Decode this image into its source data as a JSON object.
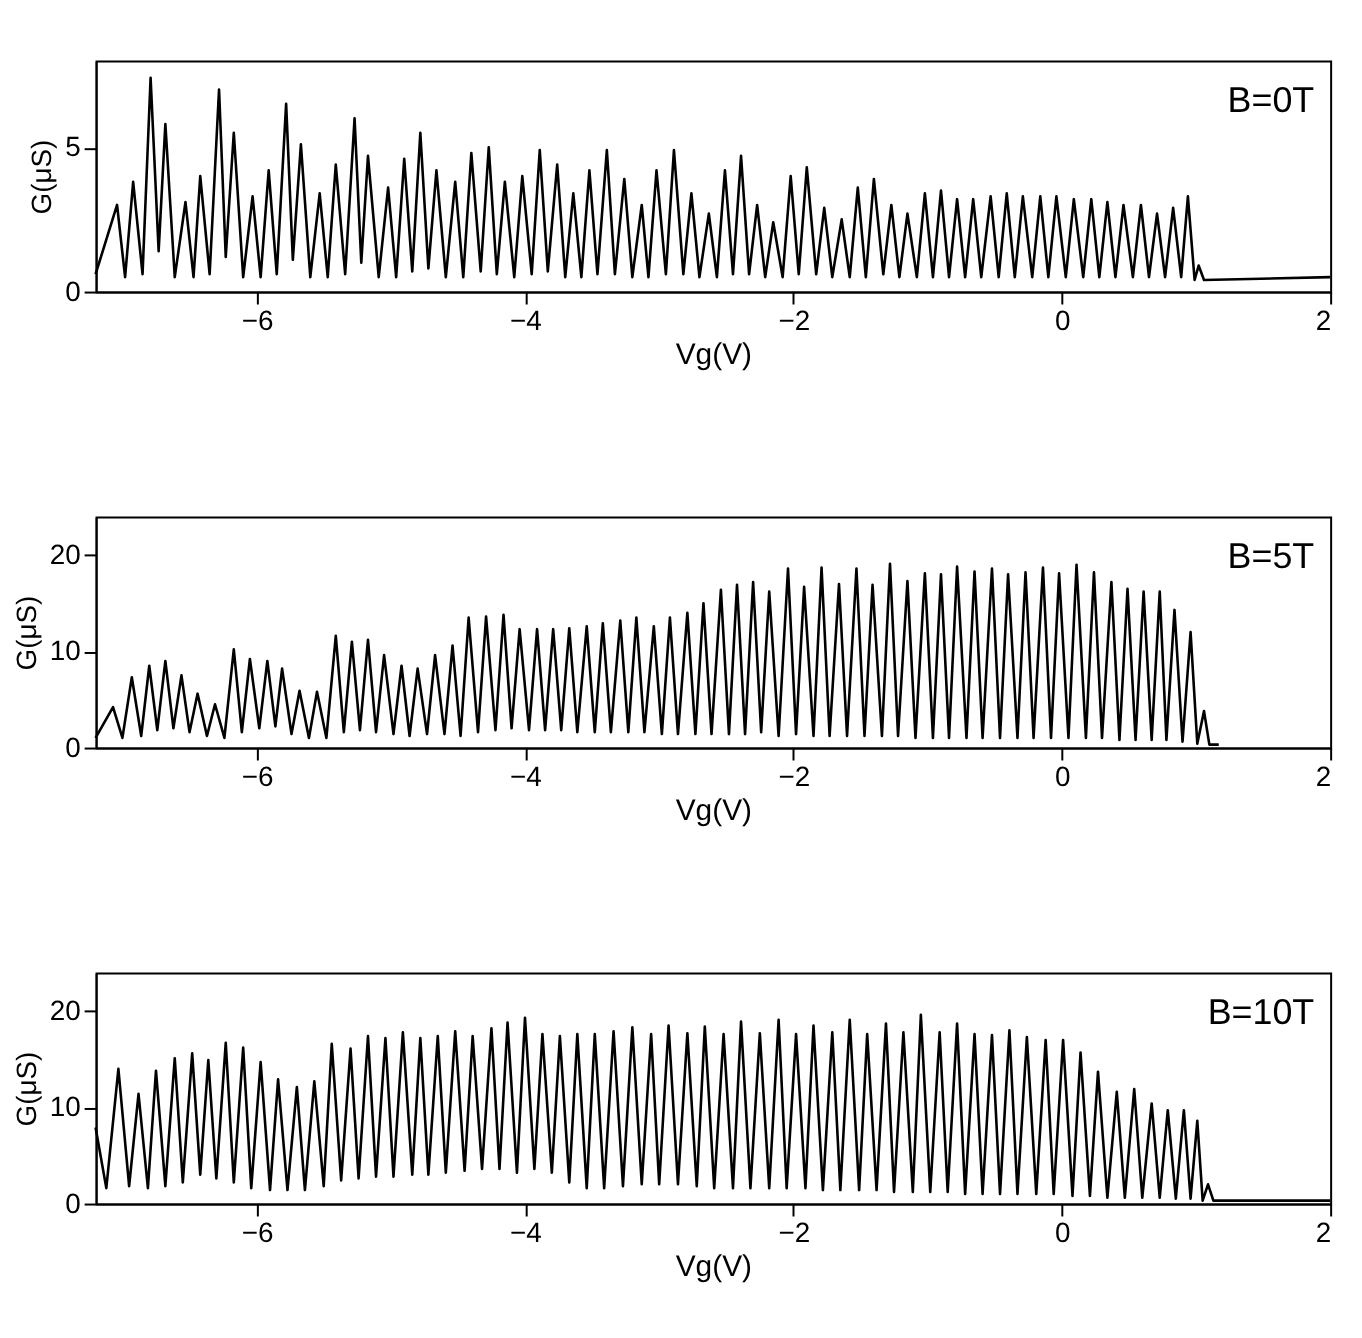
{
  "chart_data": [
    {
      "type": "line",
      "xlabel": "Vg(V)",
      "ylabel": "G(μS)",
      "annotations": [
        "B=0T"
      ],
      "color": "#000000",
      "line_style": "solid",
      "xlim": [
        -7.2,
        2
      ],
      "ylim": [
        0,
        8
      ],
      "xticks": [
        -6,
        -4,
        -2,
        0,
        2
      ],
      "yticks": [
        0,
        5
      ],
      "x": [
        -7.2,
        -7.04,
        -6.98,
        -6.92,
        -6.85,
        -6.79,
        -6.73,
        -6.68,
        -6.61,
        -6.53,
        -6.47,
        -6.42,
        -6.35,
        -6.28,
        -6.23,
        -6.17,
        -6.1,
        -6.03,
        -5.97,
        -5.91,
        -5.85,
        -5.78,
        -5.73,
        -5.67,
        -5.6,
        -5.53,
        -5.47,
        -5.41,
        -5.34,
        -5.27,
        -5.22,
        -5.17,
        -5.09,
        -5.02,
        -4.96,
        -4.9,
        -4.84,
        -4.78,
        -4.72,
        -4.66,
        -4.59,
        -4.52,
        -4.46,
        -4.4,
        -4.33,
        -4.27,
        -4.21,
        -4.15,
        -4.08,
        -4.02,
        -3.95,
        -3.89,
        -3.83,
        -3.76,
        -3.7,
        -3.64,
        -3.58,
        -3.52,
        -3.46,
        -3.39,
        -3.33,
        -3.26,
        -3.2,
        -3.13,
        -3.08,
        -3.02,
        -2.95,
        -2.89,
        -2.82,
        -2.76,
        -2.7,
        -2.63,
        -2.57,
        -2.51,
        -2.45,
        -2.39,
        -2.33,
        -2.27,
        -2.21,
        -2.15,
        -2.08,
        -2.02,
        -1.96,
        -1.9,
        -1.83,
        -1.77,
        -1.71,
        -1.64,
        -1.58,
        -1.52,
        -1.46,
        -1.4,
        -1.33,
        -1.27,
        -1.21,
        -1.15,
        -1.08,
        -1.02,
        -0.96,
        -0.9,
        -0.84,
        -0.78,
        -0.72,
        -0.66,
        -0.6,
        -0.53,
        -0.47,
        -0.41,
        -0.35,
        -0.29,
        -0.22,
        -0.16,
        -0.1,
        -0.04,
        0.03,
        0.09,
        0.16,
        0.22,
        0.28,
        0.34,
        0.4,
        0.46,
        0.53,
        0.59,
        0.65,
        0.71,
        0.77,
        0.83,
        0.89,
        0.94,
        0.99,
        1.02,
        1.06,
        2.0
      ],
      "values": [
        0.6,
        3.0,
        0.5,
        3.8,
        0.6,
        7.4,
        1.4,
        5.8,
        0.5,
        3.1,
        0.5,
        4.0,
        0.6,
        7.0,
        1.2,
        5.5,
        0.5,
        3.3,
        0.5,
        4.2,
        0.6,
        6.5,
        1.1,
        5.1,
        0.5,
        3.4,
        0.5,
        4.4,
        0.6,
        6.0,
        1.0,
        4.7,
        0.5,
        3.6,
        0.5,
        4.6,
        0.7,
        5.5,
        0.8,
        4.2,
        0.5,
        3.8,
        0.5,
        4.8,
        0.7,
        5.0,
        0.6,
        3.8,
        0.5,
        4.0,
        0.6,
        4.9,
        0.7,
        4.4,
        0.5,
        3.4,
        0.5,
        4.2,
        0.6,
        4.9,
        0.6,
        3.9,
        0.5,
        3.0,
        0.5,
        4.2,
        0.6,
        4.9,
        0.6,
        3.4,
        0.5,
        2.7,
        0.5,
        4.2,
        0.6,
        4.7,
        0.6,
        3.0,
        0.5,
        2.4,
        0.5,
        4.0,
        0.6,
        4.3,
        0.6,
        2.9,
        0.5,
        2.5,
        0.5,
        3.6,
        0.5,
        3.9,
        0.6,
        3.0,
        0.5,
        2.7,
        0.5,
        3.4,
        0.5,
        3.5,
        0.5,
        3.2,
        0.5,
        3.2,
        0.5,
        3.3,
        0.5,
        3.4,
        0.5,
        3.3,
        0.5,
        3.3,
        0.5,
        3.3,
        0.5,
        3.2,
        0.5,
        3.2,
        0.5,
        3.1,
        0.5,
        3.0,
        0.5,
        3.0,
        0.5,
        2.7,
        0.5,
        2.9,
        0.5,
        3.3,
        0.4,
        0.9,
        0.4,
        0.5
      ]
    },
    {
      "type": "line",
      "xlabel": "Vg(V)",
      "ylabel": "G(μS)",
      "annotations": [
        "B=5T"
      ],
      "color": "#000000",
      "line_style": "solid",
      "xlim": [
        -7.2,
        2
      ],
      "ylim": [
        0,
        24
      ],
      "xticks": [
        -6,
        -4,
        -2,
        0,
        2
      ],
      "yticks": [
        0,
        10,
        20
      ],
      "x": [
        -7.2,
        -7.07,
        -7.0,
        -6.93,
        -6.86,
        -6.8,
        -6.74,
        -6.68,
        -6.62,
        -6.56,
        -6.5,
        -6.44,
        -6.37,
        -6.31,
        -6.24,
        -6.17,
        -6.11,
        -6.05,
        -5.98,
        -5.92,
        -5.86,
        -5.81,
        -5.74,
        -5.68,
        -5.61,
        -5.55,
        -5.48,
        -5.41,
        -5.35,
        -5.29,
        -5.23,
        -5.17,
        -5.11,
        -5.05,
        -4.98,
        -4.92,
        -4.86,
        -4.8,
        -4.73,
        -4.67,
        -4.6,
        -4.54,
        -4.48,
        -4.42,
        -4.35,
        -4.29,
        -4.22,
        -4.16,
        -4.1,
        -4.04,
        -3.97,
        -3.91,
        -3.85,
        -3.79,
        -3.73,
        -3.67,
        -3.61,
        -3.54,
        -3.48,
        -3.42,
        -3.36,
        -3.29,
        -3.23,
        -3.17,
        -3.11,
        -3.04,
        -2.98,
        -2.92,
        -2.86,
        -2.79,
        -2.73,
        -2.67,
        -2.61,
        -2.54,
        -2.48,
        -2.42,
        -2.36,
        -2.3,
        -2.24,
        -2.18,
        -2.11,
        -2.04,
        -1.98,
        -1.92,
        -1.85,
        -1.79,
        -1.73,
        -1.66,
        -1.6,
        -1.53,
        -1.47,
        -1.41,
        -1.34,
        -1.28,
        -1.22,
        -1.15,
        -1.09,
        -1.02,
        -0.96,
        -0.9,
        -0.84,
        -0.78,
        -0.71,
        -0.65,
        -0.59,
        -0.52,
        -0.46,
        -0.4,
        -0.33,
        -0.27,
        -0.21,
        -0.14,
        -0.08,
        -0.02,
        0.05,
        0.11,
        0.18,
        0.24,
        0.3,
        0.37,
        0.43,
        0.49,
        0.55,
        0.61,
        0.67,
        0.73,
        0.78,
        0.84,
        0.9,
        0.96,
        1.01,
        1.06,
        1.1,
        1.17
      ],
      "values": [
        1.0,
        4.2,
        1.0,
        7.3,
        1.2,
        8.5,
        1.8,
        9.0,
        2.0,
        7.5,
        1.6,
        5.6,
        1.2,
        4.5,
        1.0,
        10.2,
        1.6,
        9.2,
        2.0,
        9.0,
        2.2,
        8.2,
        1.4,
        5.9,
        1.0,
        5.8,
        1.0,
        11.6,
        1.6,
        11.0,
        1.8,
        11.2,
        1.6,
        9.6,
        1.4,
        8.5,
        1.2,
        8.2,
        1.4,
        9.6,
        1.4,
        10.6,
        1.2,
        13.5,
        1.6,
        13.6,
        1.8,
        13.8,
        2.0,
        12.3,
        1.8,
        12.3,
        1.8,
        12.3,
        1.8,
        12.4,
        1.6,
        12.6,
        1.6,
        12.9,
        1.6,
        13.2,
        1.6,
        13.5,
        1.6,
        12.6,
        1.4,
        13.5,
        1.4,
        14.0,
        1.4,
        15.0,
        1.4,
        16.4,
        1.4,
        16.9,
        1.4,
        17.2,
        1.6,
        16.2,
        1.2,
        18.6,
        1.4,
        16.7,
        1.2,
        18.7,
        1.2,
        17.0,
        1.2,
        18.6,
        1.2,
        16.9,
        1.2,
        19.1,
        1.2,
        17.3,
        1.0,
        18.1,
        1.0,
        18.0,
        1.0,
        18.8,
        1.0,
        18.3,
        1.0,
        18.6,
        1.0,
        18.0,
        1.0,
        18.2,
        1.0,
        18.7,
        1.0,
        18.1,
        1.0,
        19.0,
        1.0,
        18.2,
        1.0,
        17.2,
        0.8,
        16.5,
        0.8,
        16.2,
        0.8,
        16.2,
        0.8,
        14.3,
        0.6,
        12.0,
        0.4,
        3.8,
        0.3,
        0.3
      ]
    },
    {
      "type": "line",
      "xlabel": "Vg(V)",
      "ylabel": "G(μS)",
      "annotations": [
        "B=10T"
      ],
      "color": "#000000",
      "line_style": "solid",
      "xlim": [
        -7.2,
        2
      ],
      "ylim": [
        0,
        24
      ],
      "xticks": [
        -6,
        -4,
        -2,
        0,
        2
      ],
      "yticks": [
        0,
        10,
        20
      ],
      "x": [
        -7.2,
        -7.12,
        -7.03,
        -6.95,
        -6.88,
        -6.81,
        -6.75,
        -6.68,
        -6.61,
        -6.55,
        -6.48,
        -6.42,
        -6.36,
        -6.3,
        -6.23,
        -6.17,
        -6.1,
        -6.04,
        -5.97,
        -5.9,
        -5.84,
        -5.77,
        -5.7,
        -5.64,
        -5.57,
        -5.5,
        -5.44,
        -5.37,
        -5.3,
        -5.24,
        -5.17,
        -5.11,
        -5.04,
        -4.98,
        -4.91,
        -4.84,
        -4.78,
        -4.72,
        -4.65,
        -4.59,
        -4.52,
        -4.45,
        -4.39,
        -4.32,
        -4.25,
        -4.19,
        -4.13,
        -4.06,
        -4.0,
        -3.93,
        -3.87,
        -3.8,
        -3.74,
        -3.67,
        -3.61,
        -3.54,
        -3.48,
        -3.41,
        -3.34,
        -3.27,
        -3.2,
        -3.13,
        -3.06,
        -3.0,
        -2.93,
        -2.86,
        -2.79,
        -2.72,
        -2.66,
        -2.59,
        -2.52,
        -2.45,
        -2.39,
        -2.32,
        -2.25,
        -2.18,
        -2.11,
        -2.05,
        -1.98,
        -1.91,
        -1.85,
        -1.78,
        -1.71,
        -1.65,
        -1.58,
        -1.51,
        -1.45,
        -1.38,
        -1.31,
        -1.25,
        -1.18,
        -1.11,
        -1.05,
        -0.98,
        -0.91,
        -0.85,
        -0.78,
        -0.72,
        -0.65,
        -0.59,
        -0.52,
        -0.46,
        -0.39,
        -0.33,
        -0.26,
        -0.19,
        -0.12,
        -0.06,
        0.01,
        0.08,
        0.14,
        0.21,
        0.27,
        0.34,
        0.41,
        0.47,
        0.54,
        0.6,
        0.67,
        0.73,
        0.79,
        0.85,
        0.91,
        0.96,
        1.01,
        1.05,
        1.09,
        1.13,
        2.0
      ],
      "values": [
        7.9,
        1.6,
        14.0,
        1.8,
        11.4,
        1.6,
        13.8,
        1.8,
        15.1,
        2.2,
        15.6,
        3.0,
        14.9,
        2.6,
        16.7,
        2.2,
        16.2,
        1.6,
        14.7,
        1.4,
        12.9,
        1.4,
        12.1,
        1.4,
        12.7,
        1.8,
        16.6,
        2.4,
        16.1,
        2.6,
        17.4,
        2.8,
        17.2,
        2.8,
        17.8,
        3.0,
        17.2,
        3.0,
        17.4,
        3.2,
        17.9,
        3.4,
        17.4,
        3.6,
        18.2,
        3.6,
        18.8,
        3.2,
        19.3,
        3.6,
        17.6,
        3.2,
        17.4,
        2.2,
        17.6,
        1.6,
        17.6,
        1.6,
        17.9,
        1.8,
        18.3,
        2.0,
        17.6,
        2.0,
        18.5,
        2.0,
        17.7,
        1.8,
        18.4,
        1.6,
        17.6,
        1.6,
        18.9,
        1.6,
        17.7,
        1.6,
        19.1,
        1.6,
        17.6,
        1.6,
        18.5,
        1.4,
        17.8,
        1.4,
        19.1,
        1.4,
        17.6,
        1.4,
        18.7,
        1.2,
        17.8,
        1.2,
        19.6,
        1.2,
        17.8,
        1.2,
        18.7,
        1.0,
        17.6,
        1.0,
        17.5,
        1.0,
        18.0,
        1.0,
        17.3,
        1.0,
        17.0,
        1.0,
        17.0,
        0.8,
        15.7,
        0.8,
        13.7,
        0.6,
        11.6,
        0.6,
        11.9,
        0.6,
        10.4,
        0.6,
        9.7,
        0.5,
        9.7,
        0.5,
        8.6,
        0.3,
        2.0,
        0.3,
        0.3
      ]
    }
  ]
}
